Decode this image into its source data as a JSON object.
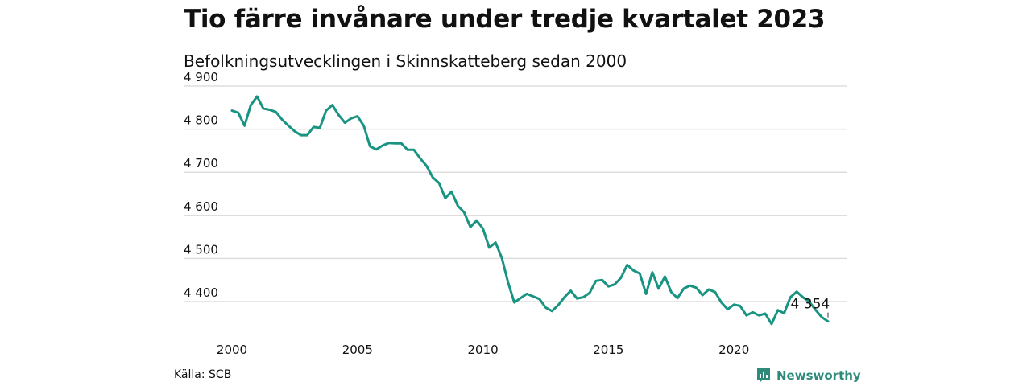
{
  "header": {
    "title": "Tio färre invånare under tredje kvartalet 2023",
    "subtitle": "Befolkningsutvecklingen i Skinnskatteberg sedan 2000"
  },
  "footer": {
    "source": "Källa: SCB",
    "brand": "Newsworthy",
    "brand_icon": "bar-chart-logo-icon"
  },
  "colors": {
    "line": "#1a9482",
    "grid": "#dddddd",
    "brand": "#2e8b7a"
  },
  "chart_data": {
    "type": "line",
    "title": "Tio färre invånare under tredje kvartalet 2023",
    "subtitle": "Befolkningsutvecklingen i Skinnskatteberg sedan 2000",
    "xlabel": "",
    "ylabel": "",
    "xlim": [
      2000,
      2023.75
    ],
    "ylim": [
      4330,
      4900
    ],
    "x_ticks": [
      2000,
      2005,
      2010,
      2015,
      2020
    ],
    "x_tick_labels": [
      "2000",
      "2005",
      "2010",
      "2015",
      "2020"
    ],
    "y_ticks": [
      4400,
      4500,
      4600,
      4700,
      4800,
      4900
    ],
    "y_tick_labels": [
      "4 400",
      "4 500",
      "4 600",
      "4 700",
      "4 800",
      "4 900"
    ],
    "grid": true,
    "annotation": {
      "label": "4 354",
      "x": 2023.5,
      "y": 4354
    },
    "series": [
      {
        "points": [
          [
            2000.0,
            4843
          ],
          [
            2000.25,
            4838
          ],
          [
            2000.5,
            4808
          ],
          [
            2000.75,
            4856
          ],
          [
            2001.0,
            4876
          ],
          [
            2001.25,
            4848
          ],
          [
            2001.5,
            4845
          ],
          [
            2001.75,
            4840
          ],
          [
            2002.0,
            4822
          ],
          [
            2002.25,
            4808
          ],
          [
            2002.5,
            4795
          ],
          [
            2002.75,
            4786
          ],
          [
            2003.0,
            4786
          ],
          [
            2003.25,
            4805
          ],
          [
            2003.5,
            4803
          ],
          [
            2003.75,
            4843
          ],
          [
            2004.0,
            4856
          ],
          [
            2004.25,
            4833
          ],
          [
            2004.5,
            4815
          ],
          [
            2004.75,
            4825
          ],
          [
            2005.0,
            4830
          ],
          [
            2005.25,
            4808
          ],
          [
            2005.5,
            4760
          ],
          [
            2005.75,
            4753
          ],
          [
            2006.0,
            4762
          ],
          [
            2006.25,
            4768
          ],
          [
            2006.5,
            4767
          ],
          [
            2006.75,
            4767
          ],
          [
            2007.0,
            4752
          ],
          [
            2007.25,
            4752
          ],
          [
            2007.5,
            4732
          ],
          [
            2007.75,
            4715
          ],
          [
            2008.0,
            4688
          ],
          [
            2008.25,
            4675
          ],
          [
            2008.5,
            4640
          ],
          [
            2008.75,
            4655
          ],
          [
            2009.0,
            4622
          ],
          [
            2009.25,
            4607
          ],
          [
            2009.5,
            4573
          ],
          [
            2009.75,
            4588
          ],
          [
            2010.0,
            4569
          ],
          [
            2010.25,
            4525
          ],
          [
            2010.5,
            4537
          ],
          [
            2010.75,
            4502
          ],
          [
            2011.0,
            4445
          ],
          [
            2011.25,
            4398
          ],
          [
            2011.5,
            4408
          ],
          [
            2011.75,
            4418
          ],
          [
            2012.0,
            4412
          ],
          [
            2012.25,
            4406
          ],
          [
            2012.5,
            4386
          ],
          [
            2012.75,
            4378
          ],
          [
            2013.0,
            4392
          ],
          [
            2013.25,
            4410
          ],
          [
            2013.5,
            4425
          ],
          [
            2013.75,
            4407
          ],
          [
            2014.0,
            4410
          ],
          [
            2014.25,
            4420
          ],
          [
            2014.5,
            4448
          ],
          [
            2014.75,
            4450
          ],
          [
            2015.0,
            4435
          ],
          [
            2015.25,
            4440
          ],
          [
            2015.5,
            4455
          ],
          [
            2015.75,
            4485
          ],
          [
            2016.0,
            4472
          ],
          [
            2016.25,
            4465
          ],
          [
            2016.5,
            4418
          ],
          [
            2016.75,
            4468
          ],
          [
            2017.0,
            4430
          ],
          [
            2017.25,
            4458
          ],
          [
            2017.5,
            4422
          ],
          [
            2017.75,
            4408
          ],
          [
            2018.0,
            4430
          ],
          [
            2018.25,
            4437
          ],
          [
            2018.5,
            4432
          ],
          [
            2018.75,
            4415
          ],
          [
            2019.0,
            4428
          ],
          [
            2019.25,
            4422
          ],
          [
            2019.5,
            4398
          ],
          [
            2019.75,
            4382
          ],
          [
            2020.0,
            4393
          ],
          [
            2020.25,
            4390
          ],
          [
            2020.5,
            4368
          ],
          [
            2020.75,
            4375
          ],
          [
            2021.0,
            4368
          ],
          [
            2021.25,
            4372
          ],
          [
            2021.5,
            4348
          ],
          [
            2021.75,
            4380
          ],
          [
            2022.0,
            4373
          ],
          [
            2022.25,
            4410
          ],
          [
            2022.5,
            4423
          ],
          [
            2022.75,
            4410
          ],
          [
            2023.0,
            4400
          ],
          [
            2023.25,
            4381
          ],
          [
            2023.5,
            4364
          ],
          [
            2023.75,
            4354
          ]
        ]
      }
    ]
  }
}
